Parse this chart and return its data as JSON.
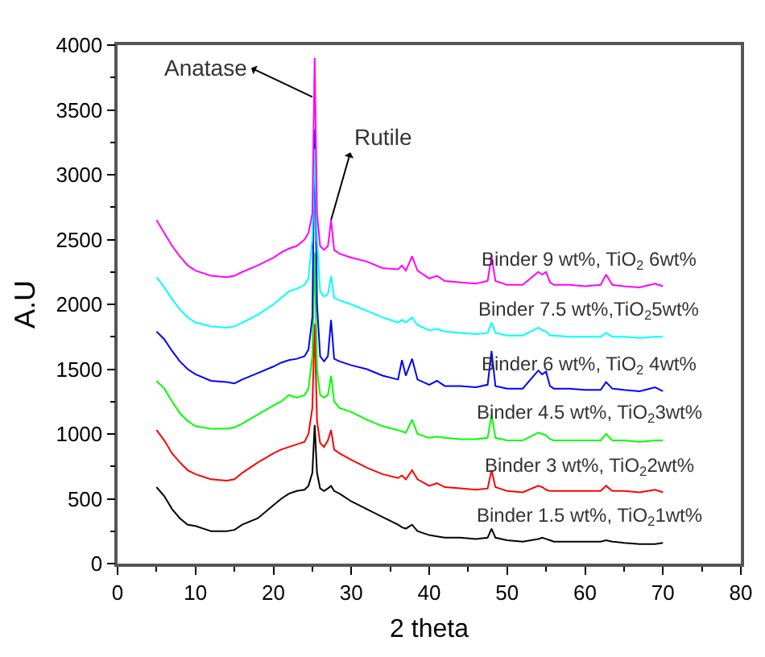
{
  "chart_data": {
    "type": "line",
    "xlabel": "2 theta",
    "ylabel": "A.U",
    "xlim": [
      0,
      80
    ],
    "xticks": [
      0,
      10,
      20,
      30,
      40,
      50,
      60,
      70,
      80
    ],
    "ylim": [
      0,
      4000
    ],
    "yticks": [
      0,
      500,
      1000,
      1500,
      2000,
      2500,
      3000,
      3500,
      4000
    ],
    "legend": false,
    "marker": "none",
    "line_style": "solid",
    "x": [
      5,
      6,
      7,
      8,
      9,
      10,
      12,
      14,
      15,
      16,
      18,
      20,
      21,
      22,
      23,
      24,
      24.5,
      25,
      25.3,
      25.6,
      26,
      26.5,
      27,
      27.4,
      27.8,
      28.5,
      30,
      32,
      34,
      36,
      36.5,
      37,
      37.8,
      38.5,
      40,
      41,
      42,
      44,
      46,
      47.5,
      48,
      48.5,
      50,
      52,
      54,
      54.5,
      55,
      55.5,
      56,
      58,
      60,
      62,
      62.7,
      63.5,
      65,
      67,
      69,
      70
    ],
    "series": [
      {
        "name": "Binder 1.5 wt%, TiO$_{2}$1wt%",
        "color": "#000000",
        "values": [
          590,
          520,
          420,
          350,
          300,
          290,
          250,
          250,
          260,
          300,
          350,
          450,
          500,
          540,
          560,
          570,
          600,
          700,
          1070,
          700,
          580,
          560,
          580,
          600,
          560,
          540,
          480,
          420,
          360,
          300,
          280,
          270,
          300,
          250,
          220,
          210,
          200,
          200,
          190,
          200,
          270,
          200,
          180,
          170,
          190,
          200,
          190,
          180,
          170,
          170,
          170,
          170,
          180,
          170,
          160,
          150,
          150,
          160
        ]
      },
      {
        "name": "Binder 3 wt%, TiO$_{2}$2wt%",
        "color": "#ff0000",
        "values": [
          1030,
          950,
          850,
          780,
          720,
          690,
          650,
          640,
          650,
          700,
          780,
          850,
          880,
          900,
          920,
          940,
          1000,
          1200,
          1850,
          1100,
          930,
          900,
          950,
          1030,
          880,
          850,
          800,
          740,
          690,
          660,
          680,
          650,
          720,
          650,
          600,
          620,
          590,
          580,
          570,
          580,
          720,
          590,
          560,
          550,
          600,
          590,
          570,
          560,
          560,
          560,
          560,
          560,
          600,
          560,
          560,
          550,
          570,
          550
        ]
      },
      {
        "name": "Binder 4.5 wt%, TiO$_{2}$3wt%",
        "color": "#00ff00",
        "values": [
          1410,
          1350,
          1250,
          1160,
          1100,
          1060,
          1040,
          1040,
          1050,
          1080,
          1150,
          1220,
          1250,
          1300,
          1280,
          1300,
          1350,
          1600,
          2400,
          1500,
          1300,
          1280,
          1300,
          1450,
          1250,
          1200,
          1170,
          1110,
          1060,
          1030,
          1020,
          1010,
          1110,
          1000,
          970,
          980,
          970,
          960,
          960,
          970,
          1150,
          970,
          950,
          950,
          1010,
          1000,
          990,
          960,
          950,
          950,
          950,
          950,
          1000,
          950,
          950,
          940,
          950,
          950
        ]
      },
      {
        "name": "Binder 6 wt%, TiO$_{2}$ 4wt%",
        "color": "#0000ff",
        "values": [
          1790,
          1730,
          1640,
          1560,
          1500,
          1460,
          1410,
          1400,
          1390,
          1420,
          1470,
          1520,
          1550,
          1570,
          1580,
          1600,
          1650,
          1900,
          3350,
          2000,
          1600,
          1560,
          1600,
          1880,
          1580,
          1560,
          1530,
          1500,
          1450,
          1420,
          1570,
          1450,
          1580,
          1420,
          1380,
          1410,
          1370,
          1370,
          1360,
          1380,
          1640,
          1370,
          1350,
          1350,
          1490,
          1460,
          1480,
          1370,
          1350,
          1350,
          1340,
          1340,
          1400,
          1350,
          1340,
          1330,
          1360,
          1330
        ]
      },
      {
        "name": "Binder 7.5 wt%,TiO$_{2}$5wt%",
        "color": "#00ffff",
        "values": [
          2210,
          2130,
          2040,
          1960,
          1900,
          1860,
          1830,
          1820,
          1830,
          1860,
          1920,
          2000,
          2050,
          2100,
          2120,
          2150,
          2200,
          2500,
          3200,
          2500,
          2100,
          2060,
          2080,
          2220,
          2050,
          2030,
          2000,
          1950,
          1900,
          1860,
          1880,
          1860,
          1900,
          1840,
          1800,
          1810,
          1790,
          1780,
          1770,
          1780,
          1860,
          1780,
          1760,
          1760,
          1820,
          1800,
          1790,
          1760,
          1760,
          1750,
          1750,
          1750,
          1780,
          1750,
          1750,
          1740,
          1750,
          1750
        ]
      },
      {
        "name": "Binder 9 wt%, TiO$_{2}$ 6wt%",
        "color": "#ff00ff",
        "values": [
          2650,
          2550,
          2450,
          2370,
          2300,
          2260,
          2220,
          2210,
          2220,
          2250,
          2300,
          2360,
          2400,
          2430,
          2450,
          2500,
          2550,
          2700,
          3900,
          2700,
          2450,
          2420,
          2450,
          2650,
          2420,
          2390,
          2360,
          2330,
          2280,
          2270,
          2300,
          2260,
          2370,
          2260,
          2200,
          2220,
          2180,
          2170,
          2160,
          2180,
          2370,
          2180,
          2150,
          2150,
          2250,
          2230,
          2250,
          2170,
          2150,
          2150,
          2140,
          2150,
          2230,
          2150,
          2140,
          2130,
          2160,
          2140
        ]
      }
    ],
    "annotations": [
      {
        "text": "Anatase",
        "x": 25,
        "y": 3600
      },
      {
        "text": "Rutile",
        "x": 27.4,
        "y": 2650
      }
    ]
  }
}
